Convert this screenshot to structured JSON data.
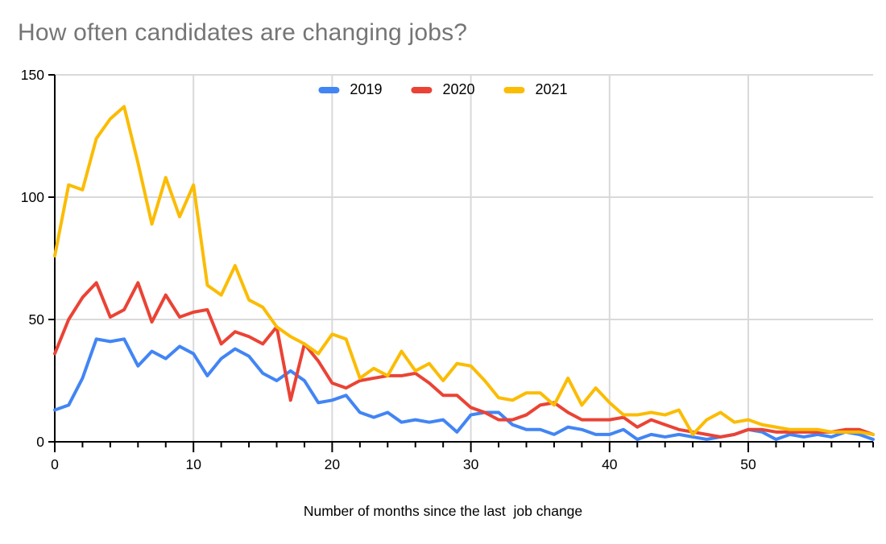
{
  "page": {
    "background": "#ffffff"
  },
  "styles": {
    "title_color": "#757575",
    "axis_color": "#000000",
    "grid_color": "#d9d9d9",
    "label_color": "#000000"
  },
  "chart_data": {
    "type": "line",
    "title": "How often candidates are changing jobs?",
    "xlabel": "Number of months since the last  job change",
    "ylabel": "",
    "ylim": [
      0,
      150
    ],
    "x_max": 59,
    "grid": true,
    "legend_position": "top-center",
    "y_tick_labels": [
      0,
      50,
      100,
      150
    ],
    "x_tick_labels": [
      0,
      10,
      20,
      30,
      40,
      50
    ],
    "x_minor_tick_step": 2,
    "months": [
      0,
      1,
      2,
      3,
      4,
      5,
      6,
      7,
      8,
      9,
      10,
      11,
      12,
      13,
      14,
      15,
      16,
      17,
      18,
      19,
      20,
      21,
      22,
      23,
      24,
      25,
      26,
      27,
      28,
      29,
      30,
      31,
      32,
      33,
      34,
      35,
      36,
      37,
      38,
      39,
      40,
      41,
      42,
      43,
      44,
      45,
      46,
      47,
      48,
      49,
      50,
      51,
      52,
      53,
      54,
      55,
      56,
      57,
      58,
      59
    ],
    "series": [
      {
        "name": "2019",
        "color": "#4285F4",
        "values": [
          13,
          15,
          26,
          42,
          41,
          42,
          31,
          37,
          34,
          39,
          36,
          27,
          34,
          38,
          35,
          28,
          25,
          29,
          25,
          16,
          17,
          19,
          12,
          10,
          12,
          8,
          9,
          8,
          9,
          4,
          11,
          12,
          12,
          7,
          5,
          5,
          3,
          6,
          5,
          3,
          3,
          5,
          1,
          3,
          2,
          3,
          2,
          1,
          2,
          3,
          5,
          4,
          1,
          3,
          2,
          3,
          2,
          4,
          3,
          1
        ]
      },
      {
        "name": "2020",
        "color": "#EA4335",
        "values": [
          36,
          50,
          59,
          65,
          51,
          54,
          65,
          49,
          60,
          51,
          53,
          54,
          40,
          45,
          43,
          40,
          47,
          17,
          40,
          33,
          24,
          22,
          25,
          26,
          27,
          27,
          28,
          24,
          19,
          19,
          14,
          12,
          9,
          9,
          11,
          15,
          16,
          12,
          9,
          9,
          9,
          10,
          6,
          9,
          7,
          5,
          4,
          3,
          2,
          3,
          5,
          5,
          4,
          4,
          4,
          4,
          4,
          5,
          5,
          3
        ]
      },
      {
        "name": "2021",
        "color": "#FBBC04",
        "values": [
          76,
          105,
          103,
          124,
          132,
          137,
          114,
          89,
          108,
          92,
          105,
          64,
          60,
          72,
          58,
          55,
          47,
          43,
          40,
          36,
          44,
          42,
          26,
          30,
          27,
          37,
          29,
          32,
          25,
          32,
          31,
          25,
          18,
          17,
          20,
          20,
          15,
          26,
          15,
          22,
          16,
          11,
          11,
          12,
          11,
          13,
          3,
          9,
          12,
          8,
          9,
          7,
          6,
          5,
          5,
          5,
          4,
          4,
          4,
          3
        ]
      }
    ]
  }
}
